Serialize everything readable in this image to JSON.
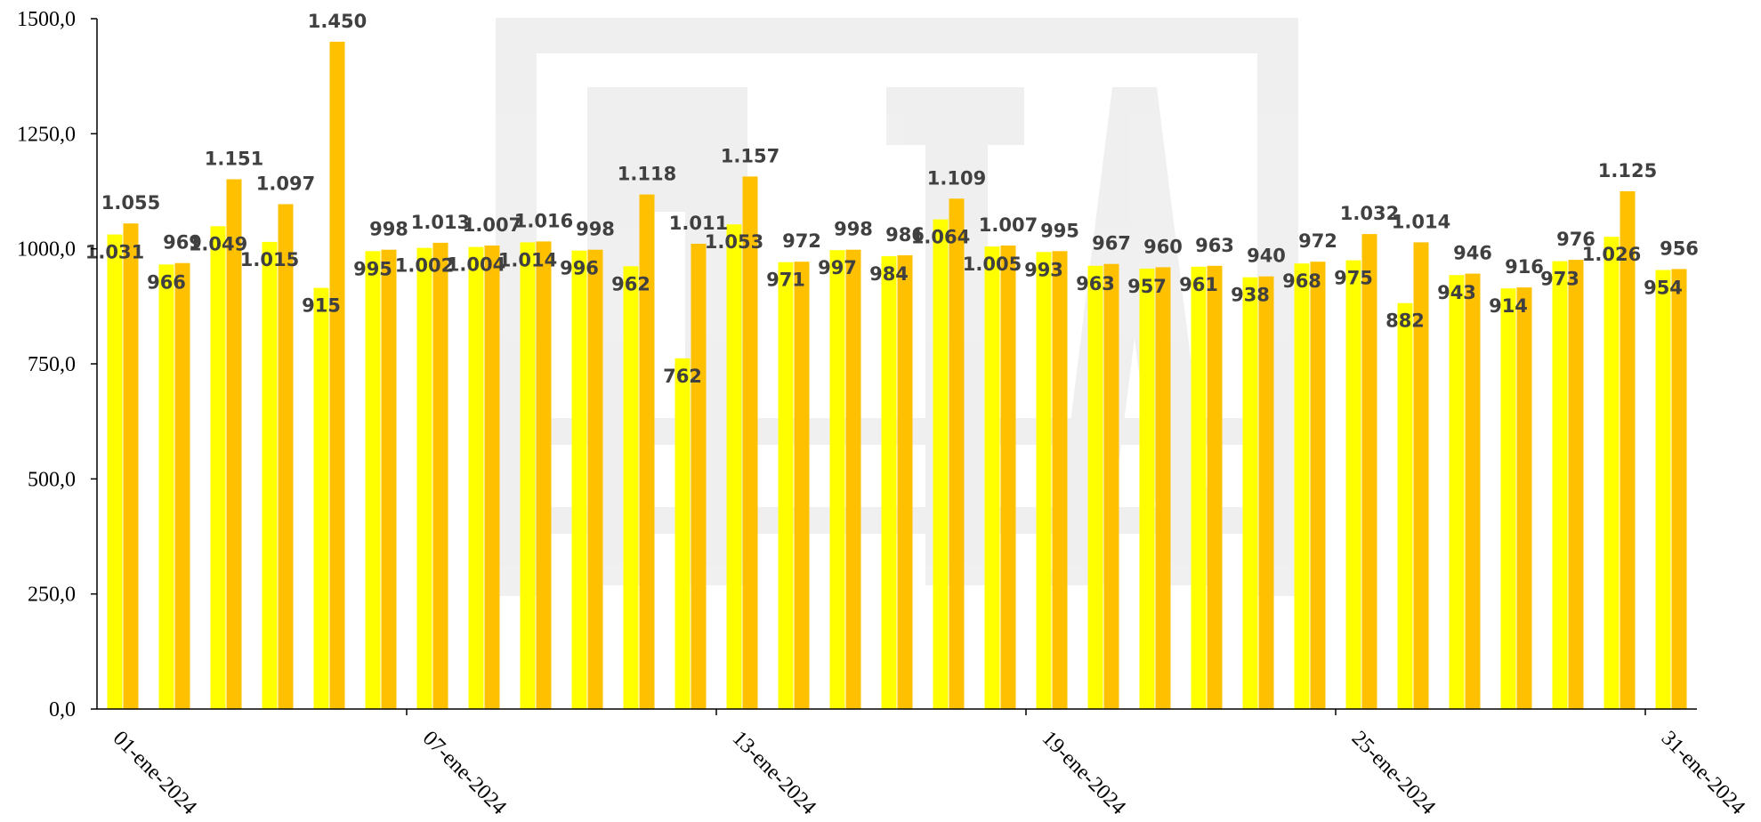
{
  "chart_data": {
    "type": "bar",
    "ylim": [
      0,
      1500
    ],
    "y_ticks": [
      "0,0",
      "250,0",
      "500,0",
      "750,0",
      "1000,0",
      "1250,0",
      "1500,0"
    ],
    "x_tick_labels": [
      "01-ene-2024",
      "07-ene-2024",
      "13-ene-2024",
      "19-ene-2024",
      "25-ene-2024",
      "31-ene-2024"
    ],
    "x_tick_every": 6,
    "grid": false,
    "legend": "none",
    "colors": {
      "series1": "#FFFF00",
      "series2": "#FFC000",
      "axis": "#000000",
      "label": "#404040",
      "watermark": "#c8c8c8"
    },
    "series": [
      {
        "values": [
          1031,
          966,
          1049,
          1015,
          915,
          995,
          1002,
          1004,
          1014,
          996,
          962,
          762,
          1053,
          971,
          997,
          984,
          1064,
          1005,
          993,
          963,
          957,
          961,
          938,
          968,
          975,
          882,
          943,
          914,
          973,
          1026,
          954
        ],
        "labels": [
          "1.031",
          "966",
          "1.049",
          "1.015",
          "915",
          "995",
          "1.002",
          "1.004",
          "1.014",
          "996",
          "962",
          "762",
          "1.053",
          "971",
          "997",
          "984",
          "1.064",
          "1.005",
          "993",
          "963",
          "957",
          "961",
          "938",
          "968",
          "975",
          "882",
          "943",
          "914",
          "973",
          "1.026",
          "954"
        ]
      },
      {
        "values": [
          1055,
          969,
          1151,
          1097,
          1450,
          998,
          1013,
          1007,
          1016,
          998,
          1118,
          1011,
          1157,
          972,
          998,
          986,
          1109,
          1007,
          995,
          967,
          960,
          963,
          940,
          972,
          1032,
          1014,
          946,
          916,
          976,
          1125,
          956
        ],
        "labels": [
          "1.055",
          "969",
          "1.151",
          "1.097",
          "1.450",
          "998",
          "1.013",
          "1.007",
          "1.016",
          "998",
          "1.118",
          "1.011",
          "1.157",
          "972",
          "998",
          "986",
          "1.109",
          "1.007",
          "995",
          "967",
          "960",
          "963",
          "940",
          "972",
          "1.032",
          "1.014",
          "946",
          "916",
          "976",
          "1.125",
          "956"
        ]
      }
    ]
  }
}
